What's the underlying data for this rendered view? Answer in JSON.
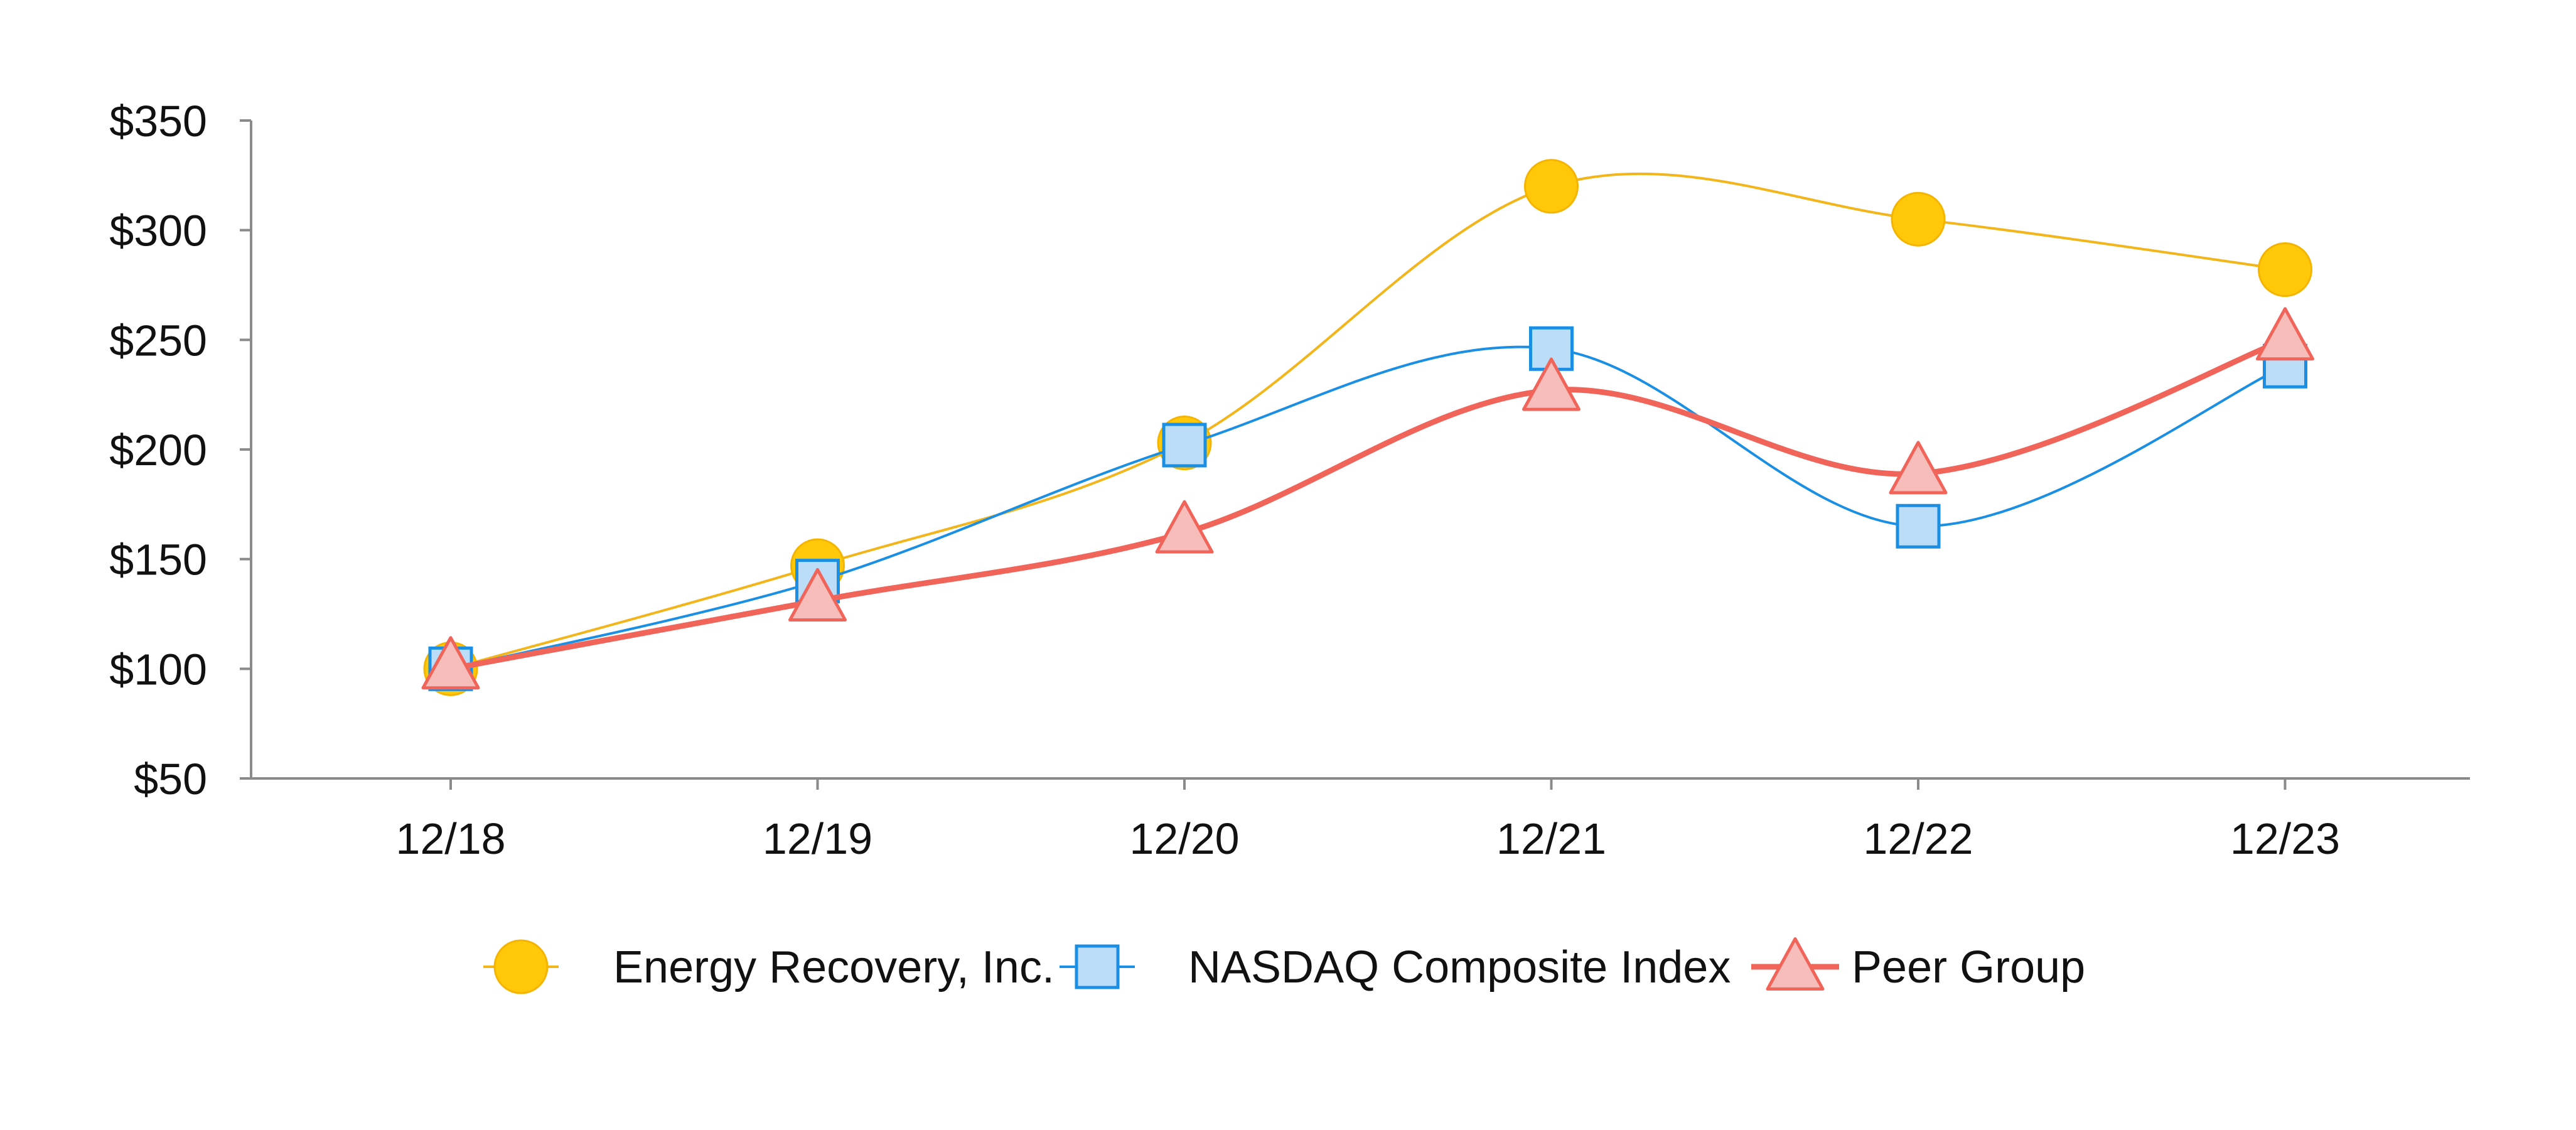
{
  "chart_data": {
    "type": "line",
    "categories": [
      "12/18",
      "12/19",
      "12/20",
      "12/21",
      "12/22",
      "12/23"
    ],
    "y_tick_labels": [
      "$50",
      "$100",
      "$150",
      "$200",
      "$250",
      "$300",
      "$350"
    ],
    "y_ticks": [
      50,
      100,
      150,
      200,
      250,
      300,
      350
    ],
    "ylim": [
      50,
      350
    ],
    "grid": false,
    "legend_position": "bottom",
    "series": [
      {
        "name": "Energy Recovery, Inc.",
        "values": [
          100,
          147,
          203,
          320,
          305,
          282
        ],
        "color": "#F2B51B",
        "fill": "#FFC90A",
        "marker": "circle",
        "line_style": "thin"
      },
      {
        "name": "NASDAQ Composite Index",
        "values": [
          100,
          140,
          202,
          246,
          165,
          238
        ],
        "color": "#1A8FE3",
        "fill": "#BBDDF7",
        "marker": "square",
        "line_style": "thin"
      },
      {
        "name": "Peer Group",
        "values": [
          100,
          131,
          162,
          227,
          189,
          250
        ],
        "color": "#F0645A",
        "fill": "#F7BDBA",
        "marker": "triangle",
        "line_style": "thick"
      }
    ]
  }
}
